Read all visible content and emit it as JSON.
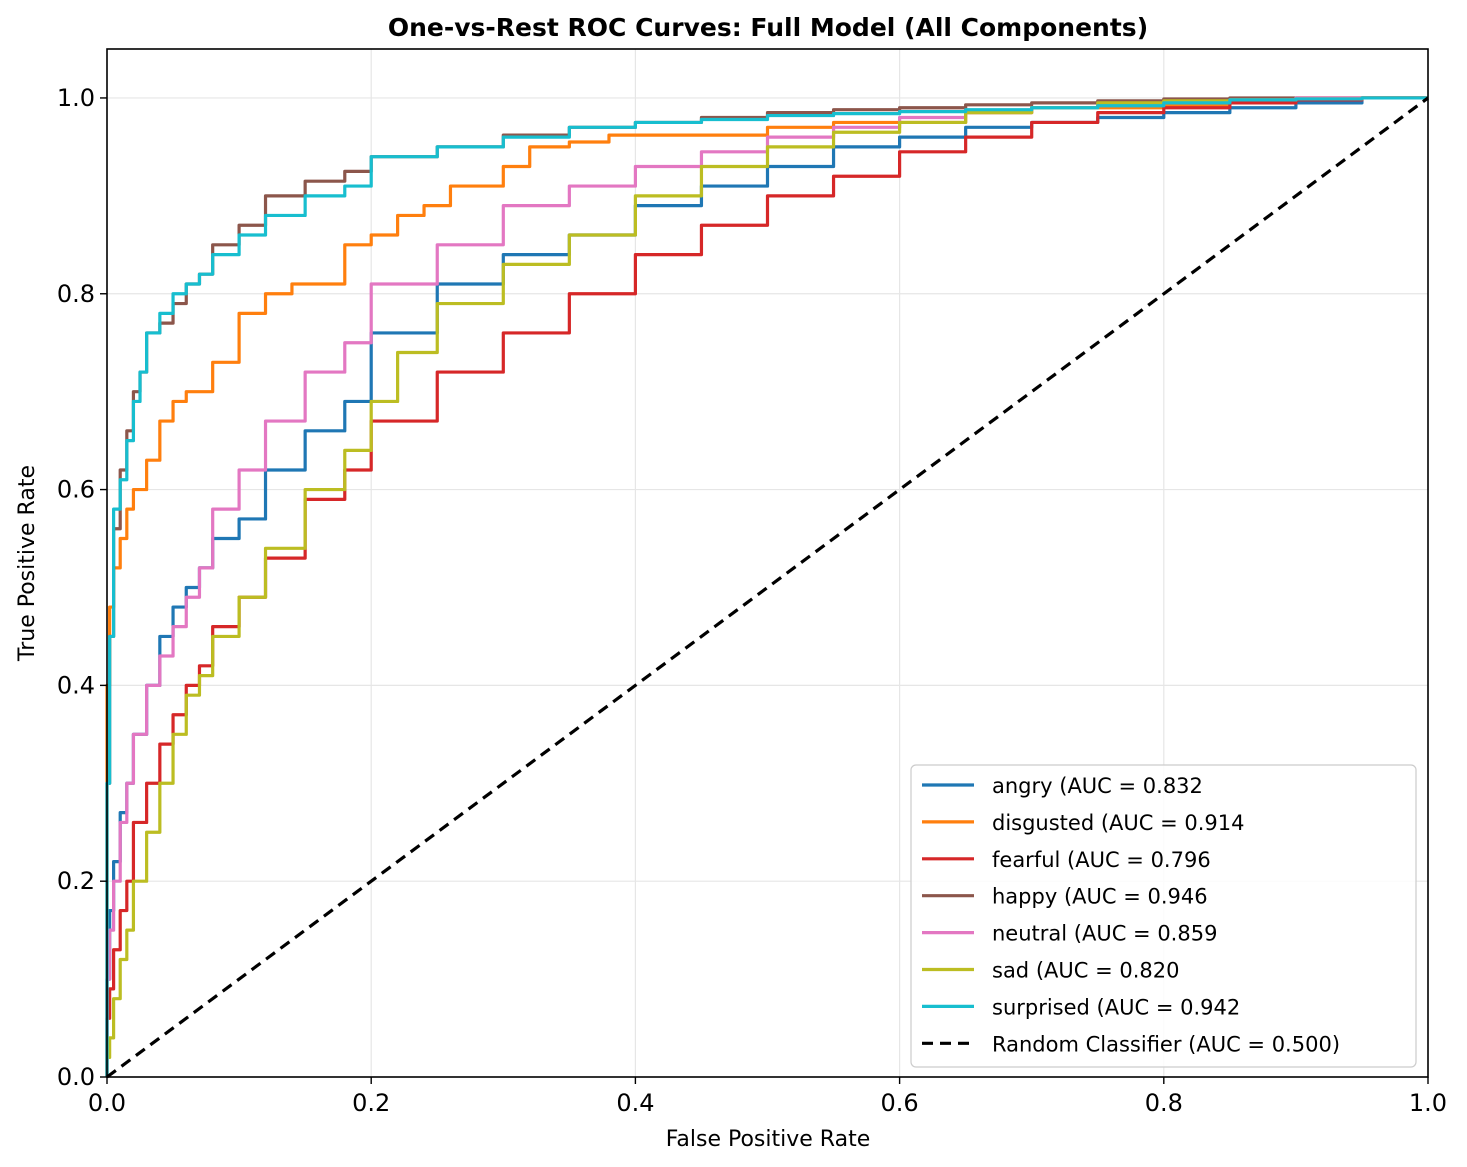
{
  "chart_data": {
    "type": "line",
    "title": "One-vs-Rest ROC Curves: Full Model (All Components)",
    "xlabel": "False Positive Rate",
    "ylabel": "True Positive Rate",
    "xlim": [
      0.0,
      1.0
    ],
    "ylim": [
      0.0,
      1.05
    ],
    "xticks": [
      "0.0",
      "0.2",
      "0.4",
      "0.6",
      "0.8",
      "1.0"
    ],
    "yticks": [
      "0.0",
      "0.2",
      "0.4",
      "0.6",
      "0.8",
      "1.0"
    ],
    "grid": true,
    "legend_position": "lower-right",
    "series": [
      {
        "name": "angry (AUC = 0.832",
        "color": "#1f77b4",
        "x": [
          0,
          0.002,
          0.005,
          0.01,
          0.015,
          0.02,
          0.03,
          0.04,
          0.05,
          0.06,
          0.07,
          0.08,
          0.1,
          0.12,
          0.15,
          0.18,
          0.2,
          0.25,
          0.3,
          0.35,
          0.4,
          0.45,
          0.5,
          0.55,
          0.6,
          0.65,
          0.7,
          0.75,
          0.8,
          0.85,
          0.9,
          0.95,
          1.0
        ],
        "y": [
          0,
          0.1,
          0.17,
          0.22,
          0.27,
          0.3,
          0.35,
          0.4,
          0.45,
          0.48,
          0.5,
          0.52,
          0.55,
          0.57,
          0.62,
          0.66,
          0.69,
          0.76,
          0.81,
          0.84,
          0.86,
          0.89,
          0.91,
          0.93,
          0.95,
          0.96,
          0.97,
          0.975,
          0.98,
          0.985,
          0.99,
          0.995,
          1.0
        ]
      },
      {
        "name": "disgusted (AUC = 0.914",
        "color": "#ff7f0e",
        "x": [
          0,
          0.002,
          0.005,
          0.01,
          0.015,
          0.02,
          0.03,
          0.04,
          0.05,
          0.06,
          0.07,
          0.08,
          0.1,
          0.12,
          0.14,
          0.16,
          0.18,
          0.2,
          0.22,
          0.24,
          0.26,
          0.28,
          0.3,
          0.32,
          0.35,
          0.38,
          0.4,
          0.45,
          0.5,
          0.55,
          0.6,
          0.65,
          0.7,
          0.75,
          0.8,
          0.85,
          0.9,
          0.95,
          1.0
        ],
        "y": [
          0,
          0.4,
          0.48,
          0.52,
          0.55,
          0.58,
          0.6,
          0.63,
          0.67,
          0.69,
          0.7,
          0.7,
          0.73,
          0.78,
          0.8,
          0.81,
          0.81,
          0.85,
          0.86,
          0.88,
          0.89,
          0.91,
          0.91,
          0.93,
          0.95,
          0.955,
          0.962,
          0.962,
          0.962,
          0.97,
          0.975,
          0.975,
          0.985,
          0.99,
          0.99,
          0.992,
          0.995,
          1.0,
          1.0
        ]
      },
      {
        "name": "fearful (AUC = 0.796",
        "color": "#d62728",
        "x": [
          0,
          0.002,
          0.005,
          0.01,
          0.015,
          0.02,
          0.03,
          0.04,
          0.05,
          0.06,
          0.07,
          0.08,
          0.1,
          0.12,
          0.15,
          0.18,
          0.2,
          0.25,
          0.3,
          0.35,
          0.4,
          0.45,
          0.5,
          0.55,
          0.6,
          0.65,
          0.7,
          0.75,
          0.8,
          0.85,
          0.9,
          0.95,
          1.0
        ],
        "y": [
          0,
          0.06,
          0.09,
          0.13,
          0.17,
          0.2,
          0.26,
          0.3,
          0.34,
          0.37,
          0.4,
          0.42,
          0.46,
          0.49,
          0.53,
          0.59,
          0.62,
          0.67,
          0.72,
          0.76,
          0.8,
          0.84,
          0.87,
          0.9,
          0.92,
          0.945,
          0.96,
          0.975,
          0.985,
          0.99,
          0.995,
          0.998,
          1.0
        ]
      },
      {
        "name": "happy (AUC = 0.946",
        "color": "#8c564b",
        "x": [
          0,
          0.002,
          0.005,
          0.01,
          0.015,
          0.02,
          0.025,
          0.03,
          0.04,
          0.05,
          0.06,
          0.07,
          0.08,
          0.1,
          0.12,
          0.15,
          0.18,
          0.2,
          0.25,
          0.3,
          0.35,
          0.4,
          0.45,
          0.5,
          0.55,
          0.6,
          0.65,
          0.7,
          0.75,
          0.8,
          0.85,
          0.9,
          0.95,
          1.0
        ],
        "y": [
          0,
          0.3,
          0.45,
          0.56,
          0.62,
          0.66,
          0.7,
          0.72,
          0.76,
          0.77,
          0.79,
          0.81,
          0.82,
          0.85,
          0.87,
          0.9,
          0.915,
          0.925,
          0.94,
          0.95,
          0.962,
          0.97,
          0.975,
          0.98,
          0.985,
          0.988,
          0.99,
          0.993,
          0.995,
          0.997,
          0.999,
          1.0,
          1.0,
          1.0
        ]
      },
      {
        "name": "neutral (AUC = 0.859",
        "color": "#e377c2",
        "x": [
          0,
          0.002,
          0.005,
          0.01,
          0.015,
          0.02,
          0.03,
          0.04,
          0.05,
          0.06,
          0.07,
          0.08,
          0.1,
          0.12,
          0.15,
          0.18,
          0.2,
          0.25,
          0.3,
          0.35,
          0.4,
          0.45,
          0.5,
          0.55,
          0.6,
          0.65,
          0.7,
          0.75,
          0.8,
          0.85,
          0.9,
          0.95,
          1.0
        ],
        "y": [
          0,
          0.1,
          0.15,
          0.2,
          0.26,
          0.3,
          0.35,
          0.4,
          0.43,
          0.46,
          0.49,
          0.52,
          0.58,
          0.62,
          0.67,
          0.72,
          0.75,
          0.81,
          0.85,
          0.89,
          0.91,
          0.93,
          0.945,
          0.96,
          0.97,
          0.98,
          0.985,
          0.99,
          0.993,
          0.996,
          0.998,
          1.0,
          1.0
        ]
      },
      {
        "name": "sad (AUC = 0.820",
        "color": "#bcbd22",
        "x": [
          0,
          0.002,
          0.005,
          0.01,
          0.015,
          0.02,
          0.03,
          0.04,
          0.05,
          0.06,
          0.07,
          0.08,
          0.1,
          0.12,
          0.15,
          0.18,
          0.2,
          0.22,
          0.25,
          0.3,
          0.35,
          0.4,
          0.45,
          0.5,
          0.55,
          0.6,
          0.65,
          0.7,
          0.75,
          0.8,
          0.85,
          0.9,
          0.95,
          1.0
        ],
        "y": [
          0,
          0.02,
          0.04,
          0.08,
          0.12,
          0.15,
          0.2,
          0.25,
          0.3,
          0.35,
          0.39,
          0.41,
          0.45,
          0.49,
          0.54,
          0.6,
          0.64,
          0.69,
          0.74,
          0.79,
          0.83,
          0.86,
          0.9,
          0.93,
          0.95,
          0.965,
          0.975,
          0.985,
          0.99,
          0.995,
          0.997,
          0.998,
          0.999,
          1.0
        ]
      },
      {
        "name": "surprised (AUC = 0.942",
        "color": "#17becf",
        "x": [
          0,
          0.002,
          0.005,
          0.01,
          0.015,
          0.02,
          0.025,
          0.03,
          0.04,
          0.05,
          0.06,
          0.07,
          0.08,
          0.1,
          0.12,
          0.15,
          0.18,
          0.2,
          0.25,
          0.3,
          0.35,
          0.4,
          0.45,
          0.5,
          0.55,
          0.6,
          0.65,
          0.7,
          0.75,
          0.8,
          0.85,
          0.9,
          0.95,
          1.0
        ],
        "y": [
          0,
          0.3,
          0.45,
          0.58,
          0.61,
          0.65,
          0.69,
          0.72,
          0.76,
          0.78,
          0.8,
          0.81,
          0.82,
          0.84,
          0.86,
          0.88,
          0.9,
          0.91,
          0.94,
          0.95,
          0.96,
          0.97,
          0.975,
          0.978,
          0.982,
          0.984,
          0.986,
          0.988,
          0.99,
          0.992,
          0.995,
          0.998,
          0.999,
          1.0
        ]
      },
      {
        "name": "Random Classifier (AUC = 0.500)",
        "color": "#000000",
        "dashed": true,
        "x": [
          0,
          1
        ],
        "y": [
          0,
          1
        ]
      }
    ]
  }
}
